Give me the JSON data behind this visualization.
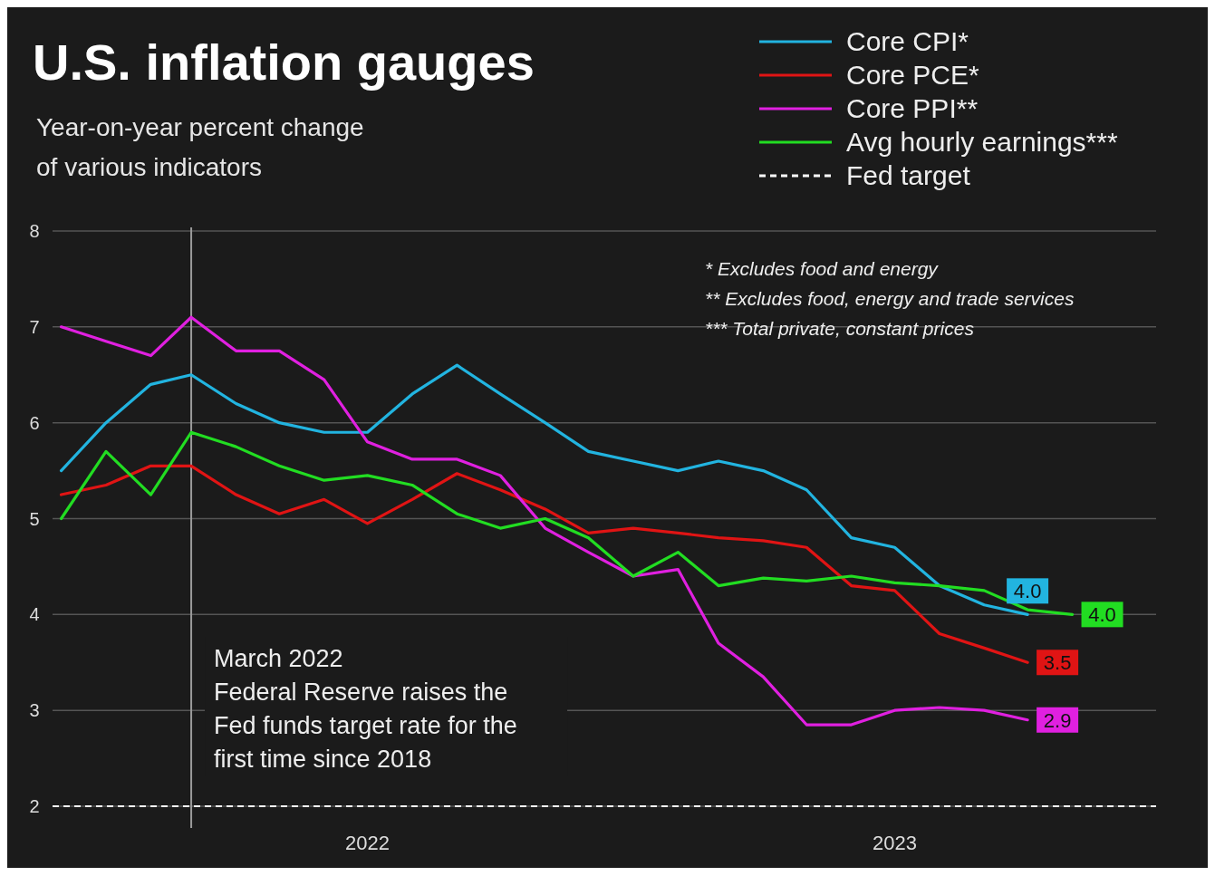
{
  "chart_data": {
    "type": "line",
    "title": "U.S. inflation gauges",
    "subtitle": "Year-on-year percent change\nof various indicators",
    "x": [
      "2021-12",
      "2022-01",
      "2022-02",
      "2022-03",
      "2022-04",
      "2022-05",
      "2022-06",
      "2022-07",
      "2022-08",
      "2022-09",
      "2022-10",
      "2022-11",
      "2022-12",
      "2023-01",
      "2023-02",
      "2023-03",
      "2023-04",
      "2023-05",
      "2023-06",
      "2023-07",
      "2023-08",
      "2023-09",
      "2023-10"
    ],
    "series": [
      {
        "name": "Core CPI*",
        "color": "#22b4e0",
        "values": [
          5.5,
          6.0,
          6.4,
          6.5,
          6.2,
          6.0,
          5.9,
          5.9,
          6.3,
          6.6,
          6.3,
          6.0,
          5.7,
          5.6,
          5.5,
          5.6,
          5.5,
          5.3,
          4.8,
          4.7,
          4.3,
          4.1,
          4.0
        ],
        "value_labels": [
          null,
          null,
          null,
          null,
          null,
          null,
          null,
          null,
          null,
          null,
          null,
          null,
          null,
          null,
          null,
          null,
          null,
          null,
          null,
          null,
          null,
          null,
          "4.0"
        ]
      },
      {
        "name": "Core PCE*",
        "color": "#e01414",
        "values": [
          5.25,
          5.35,
          5.55,
          5.55,
          5.25,
          5.05,
          5.2,
          4.95,
          5.2,
          5.47,
          5.3,
          5.1,
          4.85,
          4.9,
          4.85,
          4.8,
          4.77,
          4.7,
          4.3,
          4.25,
          3.8,
          3.65,
          3.5
        ],
        "value_labels": [
          null,
          null,
          null,
          null,
          null,
          null,
          null,
          null,
          null,
          null,
          null,
          null,
          null,
          null,
          null,
          null,
          null,
          null,
          null,
          null,
          null,
          null,
          "3.5"
        ]
      },
      {
        "name": "Core PPI**",
        "color": "#e020e0",
        "values": [
          7.0,
          6.85,
          6.7,
          7.1,
          6.75,
          6.75,
          6.45,
          5.8,
          5.62,
          5.62,
          5.45,
          4.9,
          4.65,
          4.4,
          4.47,
          3.7,
          3.35,
          2.85,
          2.85,
          3.0,
          3.03,
          3.0,
          2.9
        ],
        "value_labels": [
          null,
          null,
          null,
          null,
          null,
          null,
          null,
          null,
          null,
          null,
          null,
          null,
          null,
          null,
          null,
          null,
          null,
          null,
          null,
          null,
          null,
          null,
          "2.9"
        ]
      },
      {
        "name": "Avg hourly earnings***",
        "color": "#22dd22",
        "x": [
          "2021-12",
          "2022-01",
          "2022-02",
          "2022-03",
          "2022-04",
          "2022-05",
          "2022-06",
          "2022-07",
          "2022-08",
          "2022-09",
          "2022-10",
          "2022-11",
          "2022-12",
          "2023-01",
          "2023-02",
          "2023-03",
          "2023-04",
          "2023-05",
          "2023-06",
          "2023-07",
          "2023-08",
          "2023-09",
          "2023-10",
          "2023-11"
        ],
        "values": [
          5.0,
          5.7,
          5.25,
          5.9,
          5.75,
          5.55,
          5.4,
          5.45,
          5.35,
          5.05,
          4.9,
          5.0,
          4.8,
          4.4,
          4.65,
          4.3,
          4.38,
          4.35,
          4.4,
          4.33,
          4.3,
          4.25,
          4.05,
          4.0
        ],
        "value_labels": [
          null,
          null,
          null,
          null,
          null,
          null,
          null,
          null,
          null,
          null,
          null,
          null,
          null,
          null,
          null,
          null,
          null,
          null,
          null,
          null,
          null,
          null,
          null,
          "4.0"
        ]
      }
    ],
    "xlim": [
      "2021-11-25",
      "2023-12-29"
    ],
    "xticks": [
      {
        "value": "2022-07-01",
        "label": "2022"
      },
      {
        "value": "2023-07-01",
        "label": "2023"
      }
    ],
    "ylim": [
      2,
      8
    ],
    "yticks": [
      2,
      3,
      4,
      5,
      6,
      7,
      8
    ],
    "grid": "y",
    "legend": "top right",
    "marker": "none",
    "line_style": "solid",
    "ref_lines": [
      {
        "axis": "y",
        "value": 2,
        "label": "Fed target",
        "color": "#ffffff",
        "line_style": "dashed"
      },
      {
        "axis": "x",
        "value": "2022-03-01",
        "label": "March 2022\nFederal Reserve raises the\nFed funds target rate for the\nfirst time since 2018",
        "color": "#9a9a9a",
        "line_style": "solid"
      }
    ],
    "annotations": [
      "* Excludes food and energy",
      "** Excludes food, energy and trade services",
      "*** Total private, constant prices"
    ]
  }
}
